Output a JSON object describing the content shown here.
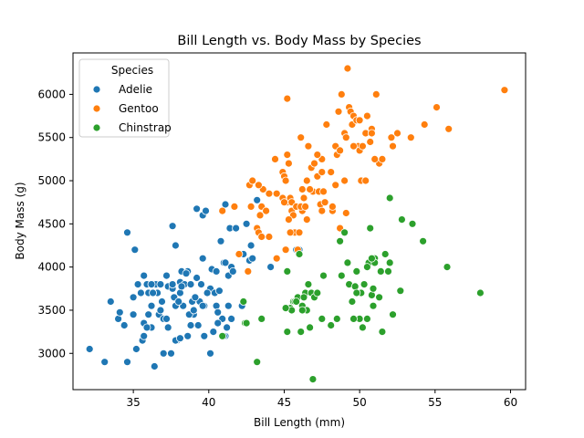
{
  "chart_data": {
    "type": "scatter",
    "title": "Bill Length vs. Body Mass by Species",
    "xlabel": "Bill Length (mm)",
    "ylabel": "Body Mass (g)",
    "xlim": [
      31,
      61
    ],
    "ylim": [
      2580,
      6480
    ],
    "xticks": [
      35,
      40,
      45,
      50,
      55,
      60
    ],
    "yticks": [
      3000,
      3500,
      4000,
      4500,
      5000,
      5500,
      6000
    ],
    "grid": false,
    "legend": {
      "title": "Species",
      "placement": "top-left"
    },
    "series": [
      {
        "name": "Adelie",
        "color": "#1f77b4",
        "points": [
          [
            32.1,
            3050
          ],
          [
            33.1,
            2900
          ],
          [
            33.5,
            3600
          ],
          [
            34.0,
            3400
          ],
          [
            34.1,
            3475
          ],
          [
            34.4,
            3325
          ],
          [
            34.6,
            2900
          ],
          [
            34.6,
            4400
          ],
          [
            35.0,
            3450
          ],
          [
            35.1,
            4200
          ],
          [
            35.2,
            3050
          ],
          [
            35.3,
            3800
          ],
          [
            35.5,
            3700
          ],
          [
            35.6,
            3150
          ],
          [
            35.7,
            3350
          ],
          [
            35.7,
            3200
          ],
          [
            35.9,
            3800
          ],
          [
            36.0,
            3700
          ],
          [
            36.0,
            3450
          ],
          [
            36.2,
            3300
          ],
          [
            36.2,
            3550
          ],
          [
            36.4,
            2850
          ],
          [
            36.5,
            3800
          ],
          [
            36.6,
            3700
          ],
          [
            36.7,
            3450
          ],
          [
            36.8,
            3500
          ],
          [
            36.9,
            3600
          ],
          [
            37.0,
            3000
          ],
          [
            37.2,
            3900
          ],
          [
            37.3,
            3775
          ],
          [
            37.5,
            3000
          ],
          [
            37.6,
            3750
          ],
          [
            37.6,
            4475
          ],
          [
            37.7,
            3650
          ],
          [
            37.8,
            3550
          ],
          [
            37.8,
            4250
          ],
          [
            37.9,
            3150
          ],
          [
            38.1,
            3700
          ],
          [
            38.1,
            3825
          ],
          [
            38.2,
            3950
          ],
          [
            38.3,
            3550
          ],
          [
            38.6,
            3950
          ],
          [
            38.6,
            3200
          ],
          [
            38.8,
            3325
          ],
          [
            38.9,
            3600
          ],
          [
            39.0,
            3450
          ],
          [
            39.2,
            3875
          ],
          [
            39.2,
            4675
          ],
          [
            39.5,
            3800
          ],
          [
            39.6,
            4600
          ],
          [
            39.7,
            3200
          ],
          [
            39.8,
            4650
          ],
          [
            40.2,
            3975
          ],
          [
            40.3,
            3250
          ],
          [
            40.5,
            3550
          ],
          [
            40.6,
            3475
          ],
          [
            40.8,
            4300
          ],
          [
            40.9,
            3400
          ],
          [
            41.0,
            4050
          ],
          [
            41.1,
            4725
          ],
          [
            41.3,
            3900
          ],
          [
            41.4,
            4450
          ],
          [
            41.5,
            4000
          ],
          [
            41.6,
            3950
          ],
          [
            41.8,
            4450
          ],
          [
            42.0,
            4150
          ],
          [
            42.2,
            3550
          ],
          [
            42.3,
            4150
          ],
          [
            42.5,
            4500
          ],
          [
            42.7,
            4075
          ],
          [
            42.8,
            4250
          ],
          [
            43.2,
            4775
          ],
          [
            44.1,
            4000
          ],
          [
            45.8,
            4200
          ],
          [
            46.0,
            4200
          ],
          [
            39.4,
            3600
          ],
          [
            37.0,
            3400
          ],
          [
            38.4,
            3800
          ],
          [
            39.1,
            3650
          ],
          [
            35.0,
            3650
          ],
          [
            36.3,
            3700
          ],
          [
            38.7,
            3450
          ],
          [
            40.1,
            3000
          ],
          [
            38.0,
            3600
          ],
          [
            39.0,
            3500
          ],
          [
            37.8,
            3150
          ],
          [
            35.9,
            3300
          ],
          [
            39.3,
            3325
          ],
          [
            41.2,
            3300
          ],
          [
            40.1,
            3750
          ],
          [
            38.5,
            3925
          ],
          [
            39.9,
            3700
          ],
          [
            40.6,
            3350
          ],
          [
            41.5,
            3400
          ],
          [
            37.3,
            3300
          ],
          [
            41.1,
            3200
          ],
          [
            36.8,
            3800
          ],
          [
            37.2,
            3400
          ],
          [
            38.2,
            3775
          ],
          [
            40.4,
            3700
          ],
          [
            39.7,
            3550
          ],
          [
            39.6,
            3550
          ],
          [
            41.1,
            4050
          ],
          [
            40.7,
            3725
          ],
          [
            36.2,
            3800
          ],
          [
            38.1,
            3175
          ],
          [
            41.3,
            3550
          ],
          [
            40.5,
            3950
          ],
          [
            41.0,
            3200
          ],
          [
            38.8,
            3800
          ],
          [
            35.7,
            3900
          ],
          [
            37.6,
            3800
          ],
          [
            39.6,
            4100
          ],
          [
            42.9,
            4100
          ]
        ]
      },
      {
        "name": "Gentoo",
        "color": "#ff7f0e",
        "points": [
          [
            40.9,
            4650
          ],
          [
            41.7,
            4700
          ],
          [
            42.0,
            4150
          ],
          [
            42.7,
            4950
          ],
          [
            42.8,
            4700
          ],
          [
            42.9,
            5000
          ],
          [
            43.2,
            4450
          ],
          [
            43.3,
            4400
          ],
          [
            43.4,
            4600
          ],
          [
            43.5,
            4700
          ],
          [
            43.6,
            4900
          ],
          [
            43.8,
            4650
          ],
          [
            44.0,
            4350
          ],
          [
            44.4,
            5250
          ],
          [
            44.5,
            4850
          ],
          [
            44.9,
            5100
          ],
          [
            45.0,
            5050
          ],
          [
            45.1,
            5000
          ],
          [
            45.2,
            5950
          ],
          [
            45.2,
            4750
          ],
          [
            45.3,
            5200
          ],
          [
            45.4,
            4800
          ],
          [
            45.5,
            4650
          ],
          [
            45.5,
            4750
          ],
          [
            45.7,
            4400
          ],
          [
            45.8,
            4700
          ],
          [
            46.1,
            5500
          ],
          [
            46.2,
            4650
          ],
          [
            46.4,
            4700
          ],
          [
            46.5,
            4550
          ],
          [
            46.6,
            5400
          ],
          [
            46.8,
            5150
          ],
          [
            46.9,
            4875
          ],
          [
            47.0,
            5200
          ],
          [
            47.2,
            5050
          ],
          [
            47.3,
            4875
          ],
          [
            47.4,
            4725
          ],
          [
            47.5,
            5250
          ],
          [
            47.7,
            4750
          ],
          [
            47.8,
            5650
          ],
          [
            48.1,
            5100
          ],
          [
            48.2,
            4650
          ],
          [
            48.4,
            5400
          ],
          [
            48.5,
            5300
          ],
          [
            48.6,
            5800
          ],
          [
            48.7,
            5350
          ],
          [
            48.8,
            6000
          ],
          [
            49.0,
            5550
          ],
          [
            49.1,
            5500
          ],
          [
            49.2,
            6300
          ],
          [
            49.3,
            5850
          ],
          [
            49.4,
            5800
          ],
          [
            49.5,
            5650
          ],
          [
            49.6,
            5750
          ],
          [
            49.8,
            5700
          ],
          [
            49.9,
            5400
          ],
          [
            50.0,
            5350
          ],
          [
            50.1,
            5000
          ],
          [
            50.2,
            5400
          ],
          [
            50.4,
            5550
          ],
          [
            50.5,
            5750
          ],
          [
            50.7,
            5450
          ],
          [
            50.8,
            5600
          ],
          [
            51.1,
            6000
          ],
          [
            51.3,
            5200
          ],
          [
            51.5,
            5250
          ],
          [
            52.1,
            5500
          ],
          [
            52.2,
            5400
          ],
          [
            52.5,
            5550
          ],
          [
            53.4,
            5500
          ],
          [
            54.3,
            5650
          ],
          [
            55.1,
            5850
          ],
          [
            55.9,
            5600
          ],
          [
            59.6,
            6050
          ],
          [
            44.5,
            4100
          ],
          [
            45.1,
            4200
          ],
          [
            45.4,
            4400
          ],
          [
            46.2,
            4900
          ],
          [
            46.5,
            5000
          ],
          [
            47.5,
            4650
          ],
          [
            48.2,
            4700
          ],
          [
            49.1,
            4625
          ],
          [
            50.0,
            5700
          ],
          [
            51.0,
            5250
          ],
          [
            43.3,
            4950
          ],
          [
            46.0,
            4400
          ],
          [
            45.6,
            4600
          ],
          [
            47.2,
            5300
          ],
          [
            46.7,
            4900
          ],
          [
            48.4,
            4950
          ],
          [
            45.3,
            4550
          ],
          [
            43.5,
            4350
          ],
          [
            44.0,
            4850
          ],
          [
            49.6,
            5400
          ],
          [
            50.8,
            5550
          ],
          [
            49.0,
            5000
          ],
          [
            42.6,
            3950
          ],
          [
            46.1,
            4700
          ],
          [
            48.7,
            4450
          ],
          [
            46.3,
            4800
          ],
          [
            47.5,
            5100
          ],
          [
            44.9,
            4800
          ],
          [
            45.0,
            4750
          ],
          [
            47.6,
            4875
          ],
          [
            46.4,
            4700
          ],
          [
            45.2,
            5300
          ],
          [
            50.4,
            5000
          ],
          [
            45.9,
            4200
          ]
        ]
      },
      {
        "name": "Chinstrap",
        "color": "#2ca02c",
        "points": [
          [
            40.9,
            3200
          ],
          [
            42.3,
            3600
          ],
          [
            42.4,
            3350
          ],
          [
            42.5,
            3350
          ],
          [
            43.2,
            2900
          ],
          [
            43.5,
            3400
          ],
          [
            45.2,
            3250
          ],
          [
            45.2,
            3950
          ],
          [
            45.4,
            3525
          ],
          [
            45.5,
            3500
          ],
          [
            45.6,
            3600
          ],
          [
            45.7,
            3600
          ],
          [
            45.9,
            3650
          ],
          [
            46.0,
            4150
          ],
          [
            46.1,
            3250
          ],
          [
            46.2,
            3550
          ],
          [
            46.4,
            3700
          ],
          [
            46.5,
            3500
          ],
          [
            46.6,
            3800
          ],
          [
            46.7,
            3300
          ],
          [
            46.8,
            3700
          ],
          [
            46.9,
            2700
          ],
          [
            47.0,
            3650
          ],
          [
            47.5,
            3400
          ],
          [
            47.6,
            3900
          ],
          [
            48.1,
            3325
          ],
          [
            48.5,
            3400
          ],
          [
            48.7,
            4300
          ],
          [
            48.8,
            3900
          ],
          [
            49.0,
            4400
          ],
          [
            49.2,
            4050
          ],
          [
            49.3,
            3800
          ],
          [
            49.5,
            3600
          ],
          [
            49.7,
            3775
          ],
          [
            49.8,
            3950
          ],
          [
            50.0,
            3400
          ],
          [
            50.1,
            3700
          ],
          [
            50.2,
            3300
          ],
          [
            50.3,
            3800
          ],
          [
            50.5,
            3400
          ],
          [
            50.6,
            4050
          ],
          [
            50.7,
            4450
          ],
          [
            50.8,
            3675
          ],
          [
            50.9,
            3550
          ],
          [
            51.0,
            4100
          ],
          [
            51.3,
            3650
          ],
          [
            51.4,
            3950
          ],
          [
            51.5,
            3250
          ],
          [
            51.9,
            3950
          ],
          [
            52.0,
            4800
          ],
          [
            52.2,
            3450
          ],
          [
            52.7,
            3725
          ],
          [
            52.8,
            4550
          ],
          [
            53.5,
            4500
          ],
          [
            54.2,
            4300
          ],
          [
            55.8,
            4000
          ],
          [
            58.0,
            3700
          ],
          [
            46.2,
            3500
          ],
          [
            45.8,
            3600
          ],
          [
            49.8,
            3700
          ],
          [
            49.6,
            3400
          ],
          [
            50.9,
            3750
          ],
          [
            51.7,
            4150
          ],
          [
            51.0,
            4050
          ],
          [
            50.5,
            4000
          ],
          [
            52.0,
            4050
          ],
          [
            45.1,
            3525
          ],
          [
            46.3,
            3650
          ],
          [
            47.2,
            3700
          ],
          [
            50.8,
            4100
          ]
        ]
      }
    ]
  }
}
